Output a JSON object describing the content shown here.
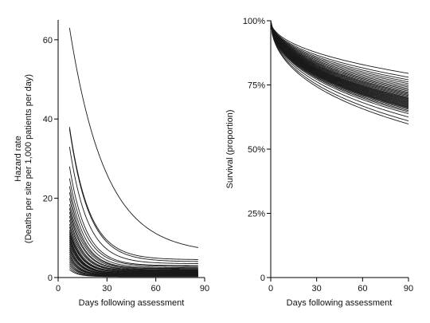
{
  "chart_data": [
    {
      "type": "line",
      "ylabel_line1": "Hazard rate",
      "ylabel_line2": "(Deaths per site per 1,000 patients per day)",
      "xlabel": "Days following assessment",
      "xlim": [
        0,
        90
      ],
      "ylim": [
        0,
        65
      ],
      "x_ticks": [
        0,
        30,
        60,
        90
      ],
      "x_tick_labels": [
        "0",
        "30",
        "60",
        "90"
      ],
      "y_ticks": [
        0,
        20,
        40,
        60
      ],
      "y_tick_labels": [
        "0",
        "20",
        "40",
        "60"
      ],
      "grid": false,
      "legend": "none",
      "x_range": [
        7,
        86
      ],
      "model": "h(t) = end + (start - end) * exp(-(t - 7) / tau)",
      "series": [
        {
          "start": 63,
          "end": 6,
          "tau": 22
        },
        {
          "start": 38,
          "end": 4.5,
          "tau": 12
        },
        {
          "start": 37.5,
          "end": 4,
          "tau": 12
        },
        {
          "start": 33,
          "end": 3.5,
          "tau": 11
        },
        {
          "start": 28,
          "end": 3,
          "tau": 10
        },
        {
          "start": 25,
          "end": 2.8,
          "tau": 10
        },
        {
          "start": 23,
          "end": 2.5,
          "tau": 9.5
        },
        {
          "start": 21.5,
          "end": 2.3,
          "tau": 9
        },
        {
          "start": 20,
          "end": 2.2,
          "tau": 9
        },
        {
          "start": 18.5,
          "end": 2,
          "tau": 9
        },
        {
          "start": 17.5,
          "end": 1.9,
          "tau": 8.5
        },
        {
          "start": 16.5,
          "end": 1.8,
          "tau": 8.5
        },
        {
          "start": 15.5,
          "end": 1.7,
          "tau": 8
        },
        {
          "start": 14.5,
          "end": 1.6,
          "tau": 8
        },
        {
          "start": 13.5,
          "end": 1.5,
          "tau": 8
        },
        {
          "start": 12.8,
          "end": 1.4,
          "tau": 7.5
        },
        {
          "start": 12,
          "end": 1.3,
          "tau": 7.5
        },
        {
          "start": 11.5,
          "end": 1.25,
          "tau": 7.5
        },
        {
          "start": 11,
          "end": 1.2,
          "tau": 7.5
        },
        {
          "start": 10.5,
          "end": 1.1,
          "tau": 7
        },
        {
          "start": 10,
          "end": 1.05,
          "tau": 7
        },
        {
          "start": 9.5,
          "end": 1,
          "tau": 7
        },
        {
          "start": 9,
          "end": 0.95,
          "tau": 7
        },
        {
          "start": 8.5,
          "end": 0.9,
          "tau": 7
        },
        {
          "start": 8,
          "end": 0.85,
          "tau": 6.5
        },
        {
          "start": 7.5,
          "end": 0.8,
          "tau": 6.5
        },
        {
          "start": 7,
          "end": 0.75,
          "tau": 6.5
        },
        {
          "start": 6.5,
          "end": 0.7,
          "tau": 6.5
        },
        {
          "start": 6,
          "end": 0.65,
          "tau": 6
        },
        {
          "start": 5.5,
          "end": 0.6,
          "tau": 6
        },
        {
          "start": 5,
          "end": 0.55,
          "tau": 6
        },
        {
          "start": 4.5,
          "end": 0.5,
          "tau": 6
        },
        {
          "start": 4,
          "end": 0.45,
          "tau": 5.5
        },
        {
          "start": 3.5,
          "end": 0.4,
          "tau": 5.5
        },
        {
          "start": 3,
          "end": 0.35,
          "tau": 5.5
        },
        {
          "start": 2.5,
          "end": 0.3,
          "tau": 5
        },
        {
          "start": 2,
          "end": 0.25,
          "tau": 5
        }
      ]
    },
    {
      "type": "line",
      "ylabel": "Survival (proportion)",
      "xlabel": "Days following assessment",
      "xlim": [
        0,
        90
      ],
      "ylim": [
        0,
        1
      ],
      "x_ticks": [
        0,
        30,
        60,
        90
      ],
      "x_tick_labels": [
        "0",
        "30",
        "60",
        "90"
      ],
      "y_ticks": [
        0,
        0.25,
        0.5,
        0.75,
        1
      ],
      "y_tick_labels": [
        "0",
        "25%",
        "50%",
        "75%",
        "100%"
      ],
      "grid": false,
      "legend": "none",
      "x_range": [
        0,
        90
      ],
      "model": "S(t) = final_at_90 ^ ((t / 90) ^ 0.5)",
      "final_at_90": [
        0.795,
        0.78,
        0.77,
        0.762,
        0.755,
        0.748,
        0.742,
        0.736,
        0.731,
        0.726,
        0.721,
        0.717,
        0.713,
        0.709,
        0.705,
        0.701,
        0.698,
        0.695,
        0.692,
        0.689,
        0.686,
        0.683,
        0.68,
        0.677,
        0.674,
        0.671,
        0.668,
        0.665,
        0.662,
        0.659,
        0.655,
        0.65,
        0.645,
        0.638,
        0.625,
        0.61,
        0.598
      ]
    }
  ]
}
